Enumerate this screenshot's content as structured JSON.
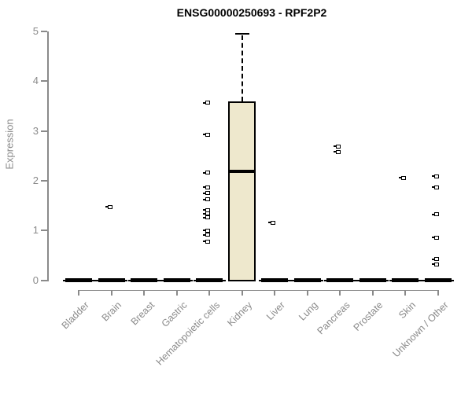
{
  "title": "ENSG00000250693 - RPF2P2",
  "colors": {
    "title": "#000000",
    "axis": "#8a8a8a",
    "tick_label": "#8a8a8a",
    "box_fill": "#EEE8CD",
    "box_border": "#000000",
    "outlier": "#000000",
    "background": "#ffffff"
  },
  "chart_data": {
    "type": "boxplot",
    "title": "ENSG00000250693 - RPF2P2",
    "xlabel": "",
    "ylabel": "Expression",
    "ylim": [
      0,
      5
    ],
    "yticks": [
      0,
      1,
      2,
      3,
      4,
      5
    ],
    "grid": false,
    "legend": null,
    "categories": [
      "Bladder",
      "Brain",
      "Breast",
      "Gastric",
      "Hematopoietic cells",
      "Kidney",
      "Liver",
      "Lung",
      "Pancreas",
      "Prostate",
      "Skin",
      "Unknown / Other"
    ],
    "boxes": [
      {
        "category": "Bladder",
        "min": 0,
        "q1": 0,
        "median": 0,
        "q3": 0,
        "max": 0
      },
      {
        "category": "Brain",
        "min": 0,
        "q1": 0,
        "median": 0,
        "q3": 0,
        "max": 0
      },
      {
        "category": "Breast",
        "min": 0,
        "q1": 0,
        "median": 0,
        "q3": 0,
        "max": 0
      },
      {
        "category": "Gastric",
        "min": 0,
        "q1": 0,
        "median": 0,
        "q3": 0,
        "max": 0
      },
      {
        "category": "Hematopoietic cells",
        "min": 0,
        "q1": 0,
        "median": 0,
        "q3": 0,
        "max": 0
      },
      {
        "category": "Kidney",
        "min": 0,
        "q1": 0,
        "median": 2.19,
        "q3": 3.6,
        "max": 4.95
      },
      {
        "category": "Liver",
        "min": 0,
        "q1": 0,
        "median": 0,
        "q3": 0,
        "max": 0
      },
      {
        "category": "Lung",
        "min": 0,
        "q1": 0,
        "median": 0,
        "q3": 0,
        "max": 0
      },
      {
        "category": "Pancreas",
        "min": 0,
        "q1": 0,
        "median": 0,
        "q3": 0,
        "max": 0
      },
      {
        "category": "Prostate",
        "min": 0,
        "q1": 0,
        "median": 0,
        "q3": 0,
        "max": 0
      },
      {
        "category": "Skin",
        "min": 0,
        "q1": 0,
        "median": 0,
        "q3": 0,
        "max": 0
      },
      {
        "category": "Unknown / Other",
        "min": 0,
        "q1": 0,
        "median": 0,
        "q3": 0,
        "max": 0
      }
    ],
    "outliers": {
      "Brain": [
        1.47
      ],
      "Hematopoietic cells": [
        3.57,
        2.93,
        2.16,
        1.87,
        1.75,
        1.62,
        1.41,
        1.34,
        1.26,
        1.0,
        0.91,
        0.78
      ],
      "Liver": [
        1.16
      ],
      "Pancreas": [
        2.69,
        2.58
      ],
      "Skin": [
        2.06
      ],
      "Unknown / Other": [
        2.09,
        1.87,
        1.32,
        0.86,
        0.42,
        0.32
      ]
    }
  }
}
